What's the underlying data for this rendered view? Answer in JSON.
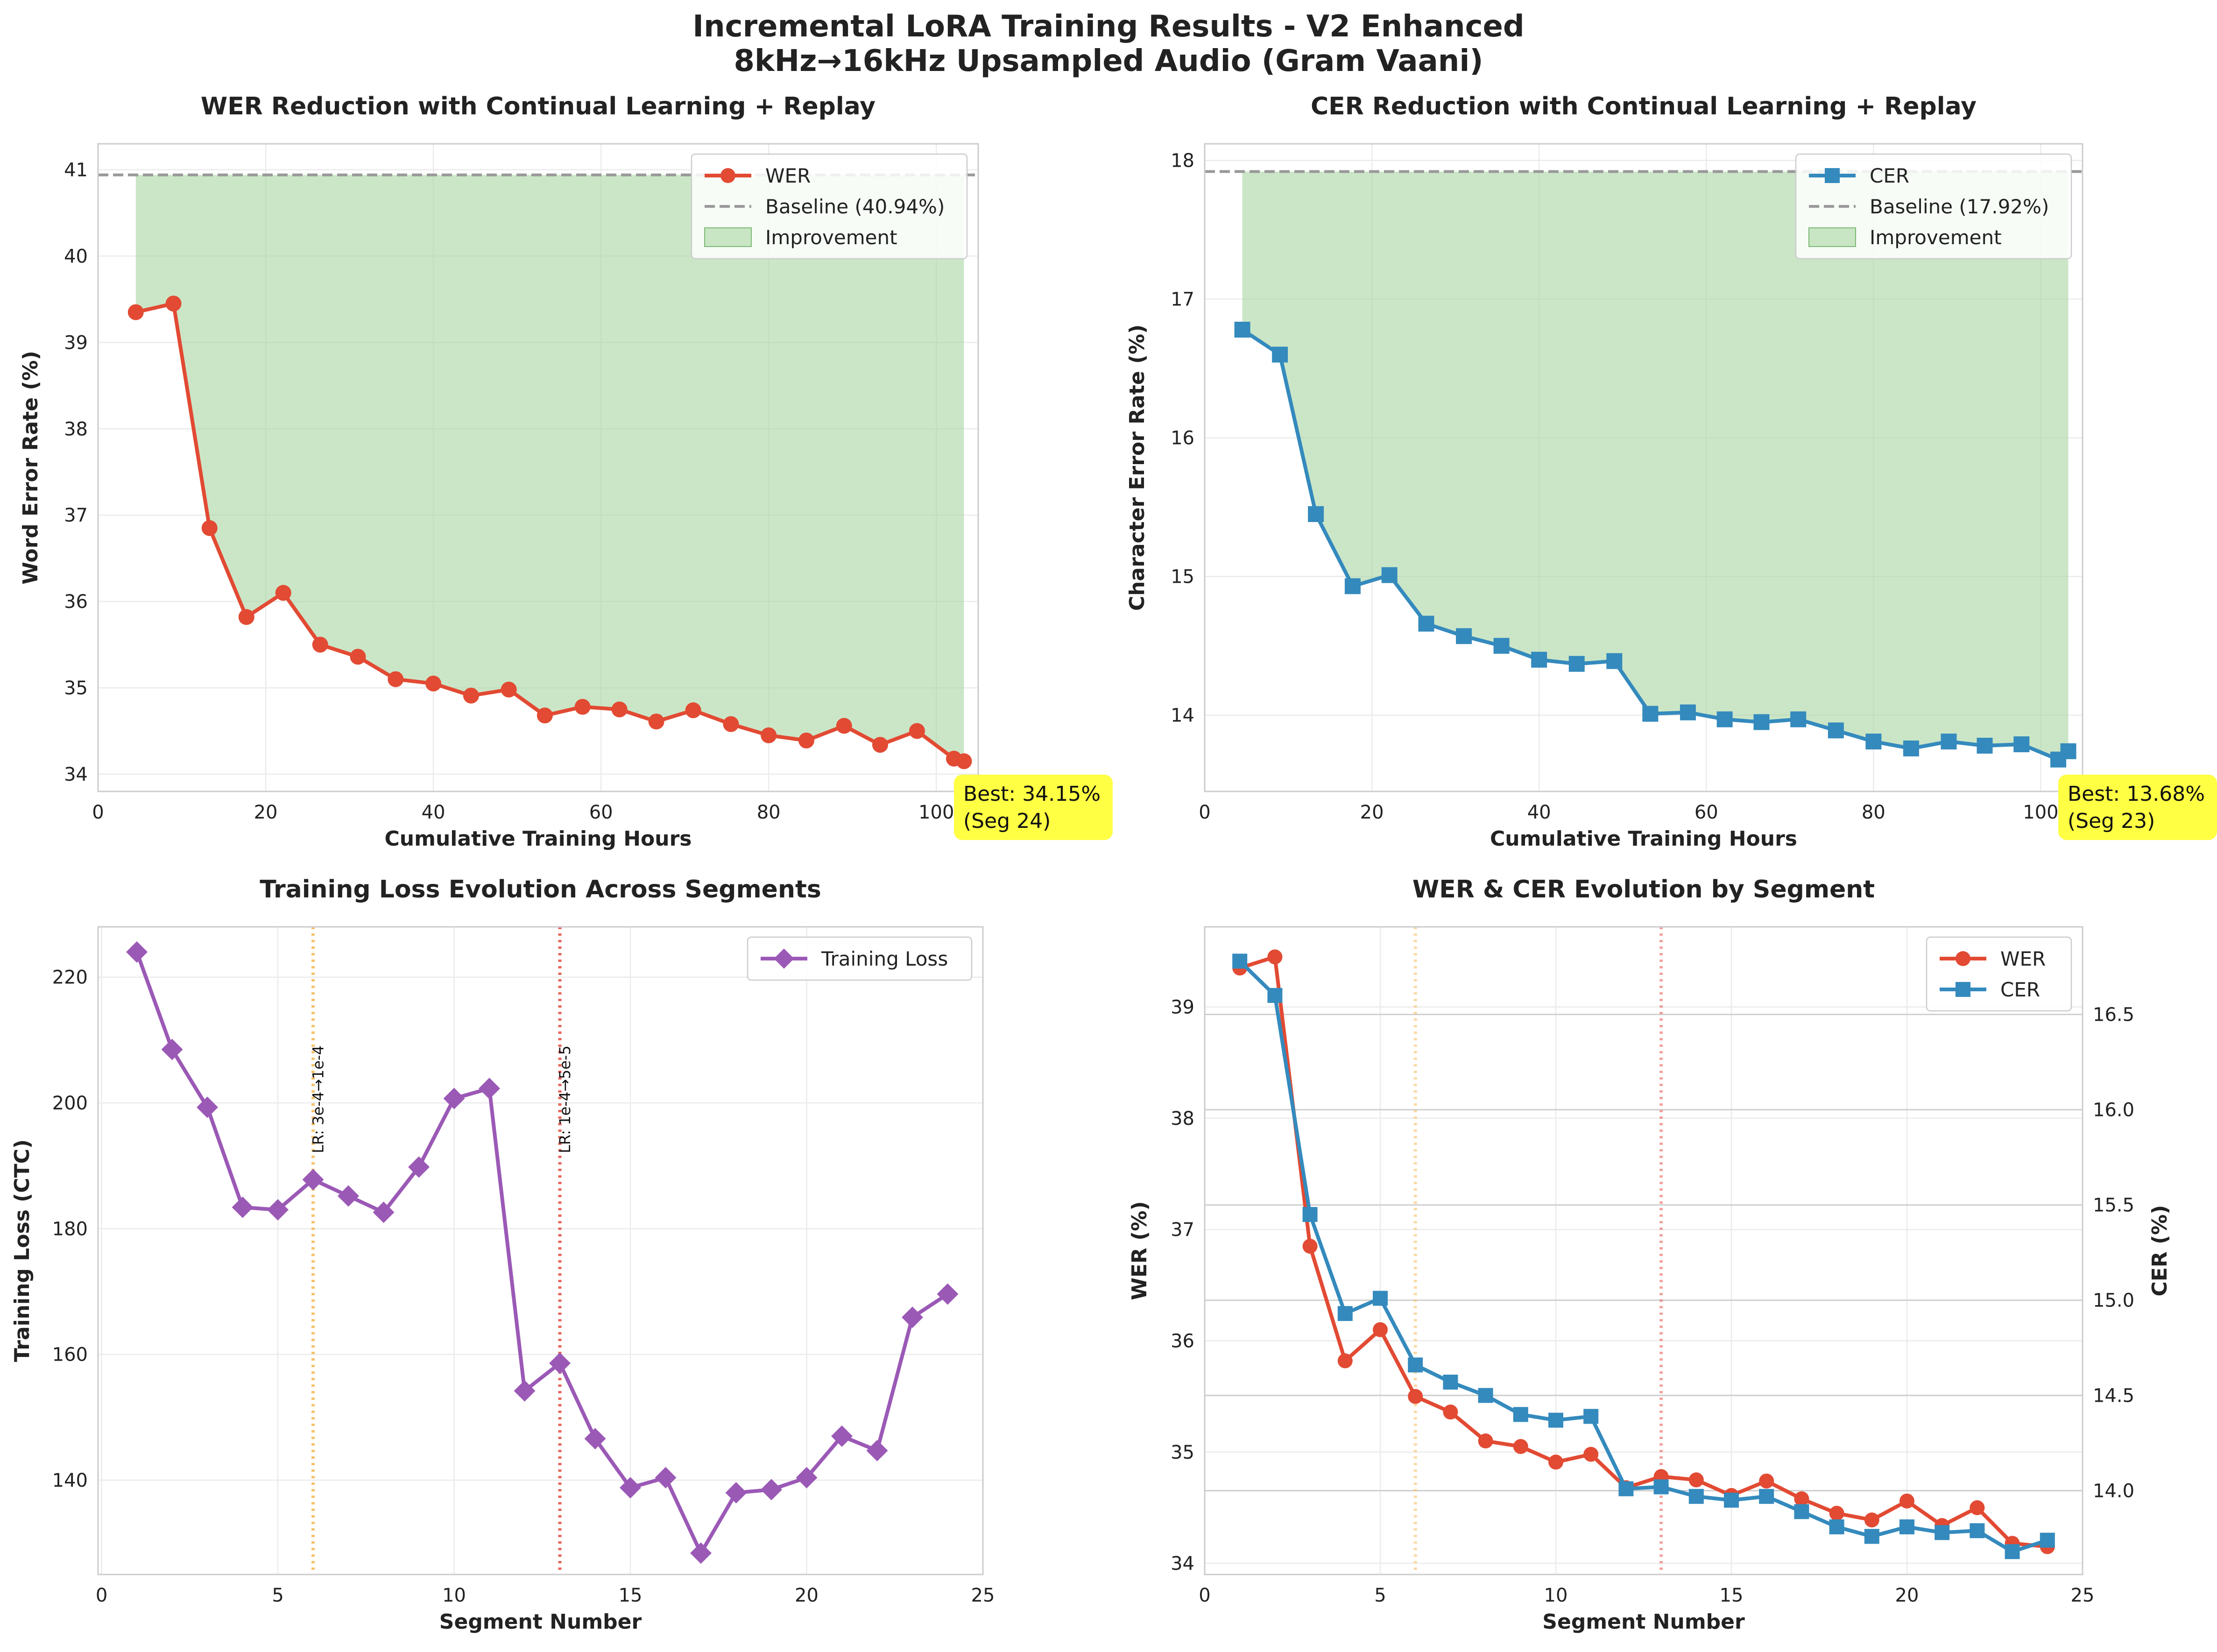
{
  "figure": {
    "title_line1": "Incremental LoRA Training Results - V2 Enhanced",
    "title_line2": "8kHz→16kHz Upsampled Audio (Gram Vaani)"
  },
  "colors": {
    "wer": "#e24a33",
    "cer": "#348ABD",
    "loss": "#9b59b6",
    "baseline": "#999999",
    "improvement": "#a8d5a2",
    "annotation_bg": "#ffff44",
    "lr1": "#f5c26b",
    "lr2": "#e8655d"
  },
  "chart_data": [
    {
      "type": "line",
      "title": "WER Reduction with Continual Learning + Replay",
      "xlabel": "Cumulative Training Hours",
      "ylabel": "Word Error Rate (%)",
      "xlim": [
        0,
        105
      ],
      "ylim": [
        33.8,
        41.3
      ],
      "xticks": [
        0,
        20,
        40,
        60,
        80,
        100
      ],
      "yticks": [
        34,
        35,
        36,
        37,
        38,
        39,
        40,
        41
      ],
      "x": [
        4.5,
        9,
        13.3,
        17.7,
        22.1,
        26.5,
        31,
        35.5,
        40,
        44.5,
        49,
        53.3,
        57.8,
        62.2,
        66.6,
        71,
        75.5,
        80,
        84.5,
        89,
        93.3,
        97.7,
        102.1,
        103.3
      ],
      "series": [
        {
          "name": "WER",
          "values": [
            39.35,
            39.45,
            36.85,
            35.82,
            36.1,
            35.5,
            35.36,
            35.1,
            35.05,
            34.91,
            34.98,
            34.68,
            34.78,
            34.75,
            34.61,
            34.74,
            34.58,
            34.45,
            34.39,
            34.56,
            34.34,
            34.5,
            34.18,
            34.15
          ]
        }
      ],
      "baseline": {
        "value": 40.94,
        "label": "Baseline (40.94%)"
      },
      "fill_label": "Improvement",
      "legend_position": "upper right",
      "best_annotation": {
        "line1": "Best: 34.15%",
        "line2": "(Seg 24)"
      }
    },
    {
      "type": "line",
      "title": "CER Reduction with Continual Learning + Replay",
      "xlabel": "Cumulative Training Hours",
      "ylabel": "Character Error Rate (%)",
      "xlim": [
        0,
        105
      ],
      "ylim": [
        13.45,
        18.12
      ],
      "xticks": [
        0,
        20,
        40,
        60,
        80,
        100
      ],
      "yticks": [
        14,
        15,
        16,
        17,
        18
      ],
      "x": [
        4.5,
        9,
        13.3,
        17.7,
        22.1,
        26.5,
        31,
        35.5,
        40,
        44.5,
        49,
        53.3,
        57.8,
        62.2,
        66.6,
        71,
        75.5,
        80,
        84.5,
        89,
        93.3,
        97.7,
        102.1,
        103.3
      ],
      "series": [
        {
          "name": "CER",
          "values": [
            16.78,
            16.6,
            15.45,
            14.93,
            15.01,
            14.66,
            14.57,
            14.5,
            14.4,
            14.37,
            14.39,
            14.01,
            14.02,
            13.97,
            13.95,
            13.97,
            13.89,
            13.81,
            13.76,
            13.81,
            13.78,
            13.79,
            13.68,
            13.74
          ]
        }
      ],
      "baseline": {
        "value": 17.92,
        "label": "Baseline (17.92%)"
      },
      "fill_label": "Improvement",
      "legend_position": "upper right",
      "best_annotation": {
        "line1": "Best: 13.68%",
        "line2": "(Seg 23)"
      }
    },
    {
      "type": "line",
      "title": "Training Loss Evolution Across Segments",
      "xlabel": "Segment Number",
      "ylabel": "Training Loss (CTC)",
      "xlim": [
        -0.1,
        25
      ],
      "ylim": [
        125,
        228
      ],
      "xticks": [
        0,
        5,
        10,
        15,
        20,
        25
      ],
      "yticks": [
        140,
        160,
        180,
        200,
        220
      ],
      "x": [
        1,
        2,
        3,
        4,
        5,
        6,
        7,
        8,
        9,
        10,
        11,
        12,
        13,
        14,
        15,
        16,
        17,
        18,
        19,
        20,
        21,
        22,
        23,
        24
      ],
      "series": [
        {
          "name": "Training Loss",
          "values": [
            224,
            208.5,
            199.3,
            183.4,
            183,
            187.8,
            185.2,
            182.6,
            189.8,
            200.7,
            202.3,
            154.2,
            158.6,
            146.6,
            138.8,
            140.4,
            128.4,
            138,
            138.5,
            140.4,
            147,
            144.7,
            165.9,
            169.6
          ]
        }
      ],
      "lr_markers": [
        {
          "x": 6,
          "label": "LR: 3e-4→1e-4"
        },
        {
          "x": 13,
          "label": "LR: 1e-4→5e-5"
        }
      ],
      "legend_position": "upper right"
    },
    {
      "type": "line",
      "title": "WER & CER Evolution by Segment",
      "xlabel": "Segment Number",
      "ylabel_left": "WER (%)",
      "ylabel_right": "CER (%)",
      "xlim": [
        0,
        25
      ],
      "ylim_left": [
        33.9,
        39.72
      ],
      "ylim_right": [
        13.56,
        16.96
      ],
      "xticks": [
        0,
        5,
        10,
        15,
        20,
        25
      ],
      "yticks_left": [
        34,
        35,
        36,
        37,
        38,
        39
      ],
      "yticks_right": [
        14.0,
        14.5,
        15.0,
        15.5,
        16.0,
        16.5
      ],
      "ytick_labels_right": [
        "14.0",
        "14.5",
        "15.0",
        "15.5",
        "16.0",
        "16.5"
      ],
      "x": [
        1,
        2,
        3,
        4,
        5,
        6,
        7,
        8,
        9,
        10,
        11,
        12,
        13,
        14,
        15,
        16,
        17,
        18,
        19,
        20,
        21,
        22,
        23,
        24
      ],
      "series": [
        {
          "name": "WER",
          "axis": "left",
          "values": [
            39.35,
            39.45,
            36.85,
            35.82,
            36.1,
            35.5,
            35.36,
            35.1,
            35.05,
            34.91,
            34.98,
            34.68,
            34.78,
            34.75,
            34.61,
            34.74,
            34.58,
            34.45,
            34.39,
            34.56,
            34.34,
            34.5,
            34.18,
            34.15
          ]
        },
        {
          "name": "CER",
          "axis": "right",
          "values": [
            16.78,
            16.6,
            15.45,
            14.93,
            15.01,
            14.66,
            14.57,
            14.5,
            14.4,
            14.37,
            14.39,
            14.01,
            14.02,
            13.97,
            13.95,
            13.97,
            13.89,
            13.81,
            13.76,
            13.81,
            13.78,
            13.79,
            13.68,
            13.74
          ]
        }
      ],
      "lr_markers_x": [
        6,
        13
      ],
      "legend_position": "upper right"
    }
  ]
}
